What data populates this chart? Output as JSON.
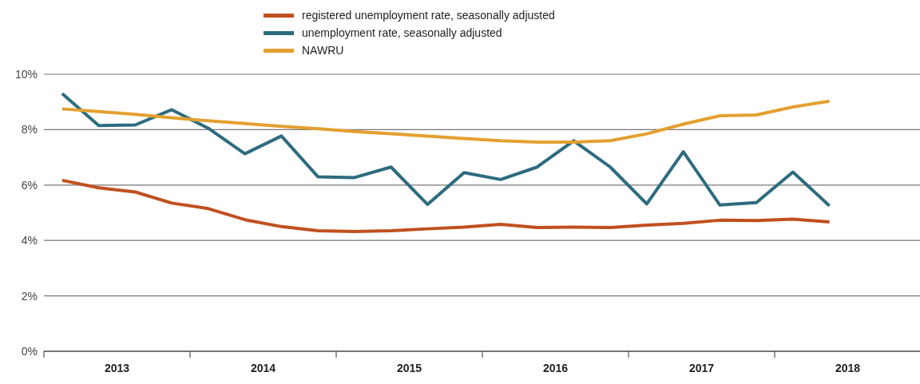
{
  "chart_data": {
    "type": "line",
    "x": [
      2013.125,
      2013.375,
      2013.625,
      2013.875,
      2014.125,
      2014.375,
      2014.625,
      2014.875,
      2015.125,
      2015.375,
      2015.625,
      2015.875,
      2016.125,
      2016.375,
      2016.625,
      2016.875,
      2017.125,
      2017.375,
      2017.625,
      2017.875,
      2018.125,
      2018.375
    ],
    "series": [
      {
        "name": "registered unemployment rate, seasonally adjusted",
        "color": "#c0501f",
        "values": [
          6.17,
          5.9,
          5.75,
          5.35,
          5.15,
          4.75,
          4.5,
          4.35,
          4.32,
          4.35,
          4.42,
          4.48,
          4.58,
          4.47,
          4.48,
          4.47,
          4.55,
          4.62,
          4.73,
          4.72,
          4.77,
          4.67
        ]
      },
      {
        "name": "unemployment rate, seasonally adjusted",
        "color": "#2e6b7e",
        "values": [
          9.3,
          8.15,
          8.17,
          8.72,
          8.05,
          7.13,
          7.77,
          6.3,
          6.27,
          6.65,
          5.3,
          6.45,
          6.2,
          6.65,
          7.6,
          6.65,
          5.32,
          7.2,
          5.28,
          5.37,
          6.47,
          5.25
        ]
      },
      {
        "name": "NAWRU",
        "color": "#e3a030",
        "values": [
          8.75,
          8.65,
          8.55,
          8.43,
          8.32,
          8.22,
          8.12,
          8.03,
          7.93,
          7.85,
          7.77,
          7.68,
          7.6,
          7.55,
          7.55,
          7.6,
          7.85,
          8.2,
          8.5,
          8.53,
          8.82,
          9.03
        ]
      }
    ],
    "xlim": [
      2013,
      2019
    ],
    "xticks": [
      {
        "value": 2013,
        "label": null
      },
      {
        "value": 2013.5,
        "label": "2013"
      },
      {
        "value": 2014,
        "label": null
      },
      {
        "value": 2014.5,
        "label": "2014"
      },
      {
        "value": 2015,
        "label": null
      },
      {
        "value": 2015.5,
        "label": "2015"
      },
      {
        "value": 2016,
        "label": null
      },
      {
        "value": 2016.5,
        "label": "2016"
      },
      {
        "value": 2017,
        "label": null
      },
      {
        "value": 2017.5,
        "label": "2017"
      },
      {
        "value": 2018,
        "label": null
      },
      {
        "value": 2018.5,
        "label": "2018"
      },
      {
        "value": 2019,
        "label": null
      }
    ],
    "ylim": [
      0,
      10
    ],
    "yticks": [
      {
        "value": 0,
        "label": "0%"
      },
      {
        "value": 2,
        "label": "2%"
      },
      {
        "value": 4,
        "label": "4%"
      },
      {
        "value": 6,
        "label": "6%"
      },
      {
        "value": 8,
        "label": "8%"
      },
      {
        "value": 10,
        "label": "10%"
      }
    ],
    "grid": "y",
    "legend": "top",
    "marker": "none",
    "line_style": "solid"
  }
}
